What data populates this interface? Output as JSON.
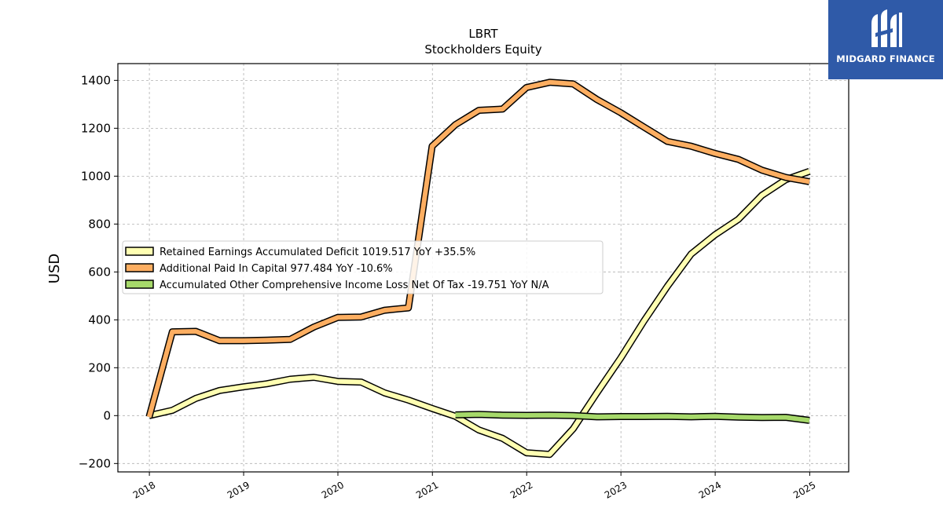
{
  "brand": {
    "name": "MIDGARD FINANCE",
    "logo_icon": "midgard-logo-icon",
    "color": "#2f5aa8"
  },
  "chart_data": {
    "type": "line",
    "title": "LBRT",
    "subtitle": "Stockholders  Equity",
    "ylabel": "USD",
    "xlabel": "",
    "ylim": [
      -235,
      1470
    ],
    "xlim": [
      "2017-09-01",
      "2025-06-01"
    ],
    "yticks": [
      -200,
      0,
      200,
      400,
      600,
      800,
      1000,
      1200,
      1400
    ],
    "yticklabels": [
      "−200",
      "0",
      "200",
      "400",
      "600",
      "800",
      "1000",
      "1200",
      "1400"
    ],
    "xticks": [
      "2018-01-01",
      "2019-01-01",
      "2020-01-01",
      "2021-01-01",
      "2022-01-01",
      "2023-01-01",
      "2024-01-01",
      "2025-01-01"
    ],
    "xticklabels": [
      "2018",
      "2019",
      "2020",
      "2021",
      "2022",
      "2023",
      "2024",
      "2025"
    ],
    "grid": true,
    "legend_position": "center-left",
    "series": [
      {
        "name": "Retained Earnings Accumulated Deficit  1019.517 YoY +35.5%",
        "color": "#ffffb2",
        "points": [
          [
            "2017-12-31",
            0
          ],
          [
            "2018-03-31",
            22
          ],
          [
            "2018-06-30",
            72
          ],
          [
            "2018-09-30",
            105
          ],
          [
            "2018-12-31",
            120
          ],
          [
            "2019-03-31",
            133
          ],
          [
            "2019-06-30",
            152
          ],
          [
            "2019-09-30",
            160
          ],
          [
            "2019-12-31",
            143
          ],
          [
            "2020-03-31",
            140
          ],
          [
            "2020-06-30",
            95
          ],
          [
            "2020-09-30",
            65
          ],
          [
            "2020-12-31",
            30
          ],
          [
            "2021-03-31",
            -3
          ],
          [
            "2021-06-30",
            -60
          ],
          [
            "2021-09-30",
            -95
          ],
          [
            "2021-12-31",
            -155
          ],
          [
            "2022-03-31",
            -162
          ],
          [
            "2022-06-30",
            -55
          ],
          [
            "2022-09-30",
            95
          ],
          [
            "2022-12-31",
            240
          ],
          [
            "2023-03-31",
            395
          ],
          [
            "2023-06-30",
            540
          ],
          [
            "2023-09-30",
            675
          ],
          [
            "2023-12-31",
            755
          ],
          [
            "2024-03-31",
            820
          ],
          [
            "2024-06-30",
            920
          ],
          [
            "2024-09-30",
            985
          ],
          [
            "2024-12-31",
            1020
          ]
        ]
      },
      {
        "name": "Additional Paid In Capital  977.484 YoY -10.6%",
        "color": "#fdae61",
        "points": [
          [
            "2017-12-31",
            -5
          ],
          [
            "2018-03-31",
            350
          ],
          [
            "2018-06-30",
            352
          ],
          [
            "2018-09-30",
            313
          ],
          [
            "2018-12-31",
            313
          ],
          [
            "2019-03-31",
            315
          ],
          [
            "2019-06-30",
            318
          ],
          [
            "2019-09-30",
            370
          ],
          [
            "2019-12-31",
            410
          ],
          [
            "2020-03-31",
            412
          ],
          [
            "2020-06-30",
            440
          ],
          [
            "2020-09-30",
            450
          ],
          [
            "2020-12-31",
            1125
          ],
          [
            "2021-03-31",
            1215
          ],
          [
            "2021-06-30",
            1275
          ],
          [
            "2021-09-30",
            1280
          ],
          [
            "2021-12-31",
            1370
          ],
          [
            "2022-03-31",
            1392
          ],
          [
            "2022-06-30",
            1385
          ],
          [
            "2022-09-30",
            1320
          ],
          [
            "2022-12-31",
            1265
          ],
          [
            "2023-03-31",
            1205
          ],
          [
            "2023-06-30",
            1145
          ],
          [
            "2023-09-30",
            1125
          ],
          [
            "2023-12-31",
            1095
          ],
          [
            "2024-03-31",
            1070
          ],
          [
            "2024-06-30",
            1025
          ],
          [
            "2024-09-30",
            995
          ],
          [
            "2024-12-31",
            977
          ]
        ]
      },
      {
        "name": "Accumulated Other Comprehensive Income Loss Net Of Tax  -19.751 YoY N/A",
        "color": "#a6d96a",
        "points": [
          [
            "2021-03-31",
            3
          ],
          [
            "2021-06-30",
            5
          ],
          [
            "2021-09-30",
            2
          ],
          [
            "2021-12-31",
            1
          ],
          [
            "2022-03-31",
            2
          ],
          [
            "2022-06-30",
            0
          ],
          [
            "2022-09-30",
            -5
          ],
          [
            "2022-12-31",
            -4
          ],
          [
            "2023-03-31",
            -4
          ],
          [
            "2023-06-30",
            -3
          ],
          [
            "2023-09-30",
            -5
          ],
          [
            "2023-12-31",
            -3
          ],
          [
            "2024-03-31",
            -6
          ],
          [
            "2024-06-30",
            -8
          ],
          [
            "2024-09-30",
            -7
          ],
          [
            "2024-12-31",
            -20
          ]
        ]
      }
    ]
  }
}
